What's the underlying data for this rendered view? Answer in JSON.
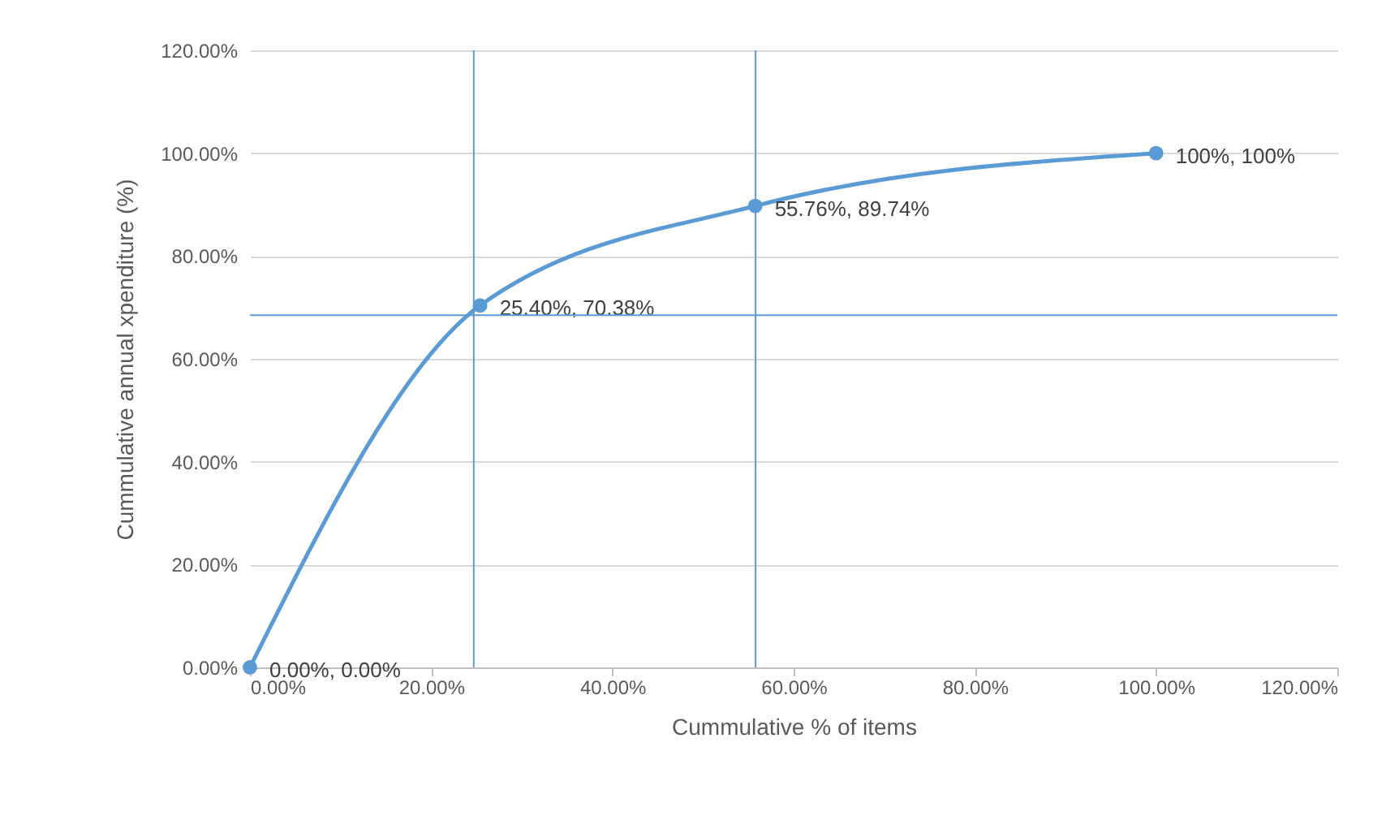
{
  "chart_data": {
    "type": "line",
    "xlabel": "Cummulative % of items",
    "ylabel": "Cummulative annual xpenditure (%)",
    "x": [
      0,
      25.4,
      55.76,
      100
    ],
    "series": [
      {
        "color": "#5b9bd5",
        "values": [
          0,
          70.38,
          89.74,
          100
        ],
        "value_labels": [
          "0.00%, 0.00%",
          "25.40%, 70.38%",
          "55.76%, 89.74%",
          "100%, 100%"
        ]
      }
    ],
    "marker": "circle",
    "grid": "y",
    "xlim": [
      0,
      120
    ],
    "ylim": [
      0,
      120
    ],
    "xticks": [
      {
        "value": 0,
        "label": "0.00%"
      },
      {
        "value": 20,
        "label": "20.00%"
      },
      {
        "value": 40,
        "label": "40.00%"
      },
      {
        "value": 60,
        "label": "60.00%"
      },
      {
        "value": 80,
        "label": "80.00%"
      },
      {
        "value": 100,
        "label": "100.00%"
      },
      {
        "value": 120,
        "label": "120.00%"
      }
    ],
    "yticks": [
      {
        "value": 0,
        "label": "0.00%"
      },
      {
        "value": 20,
        "label": "20.00%"
      },
      {
        "value": 40,
        "label": "40.00%"
      },
      {
        "value": 60,
        "label": "60.00%"
      },
      {
        "value": 80,
        "label": "80.00%"
      },
      {
        "value": 100,
        "label": "100.00%"
      },
      {
        "value": 120,
        "label": "120.00%"
      }
    ],
    "ref_lines": [
      {
        "axis": "x",
        "value": 24.7,
        "color": "#5b9bd5"
      },
      {
        "axis": "y",
        "value": 68.5,
        "color": "#5b9bd5"
      },
      {
        "axis": "x",
        "value": 55.8,
        "color": "#5b9bd5"
      }
    ]
  }
}
